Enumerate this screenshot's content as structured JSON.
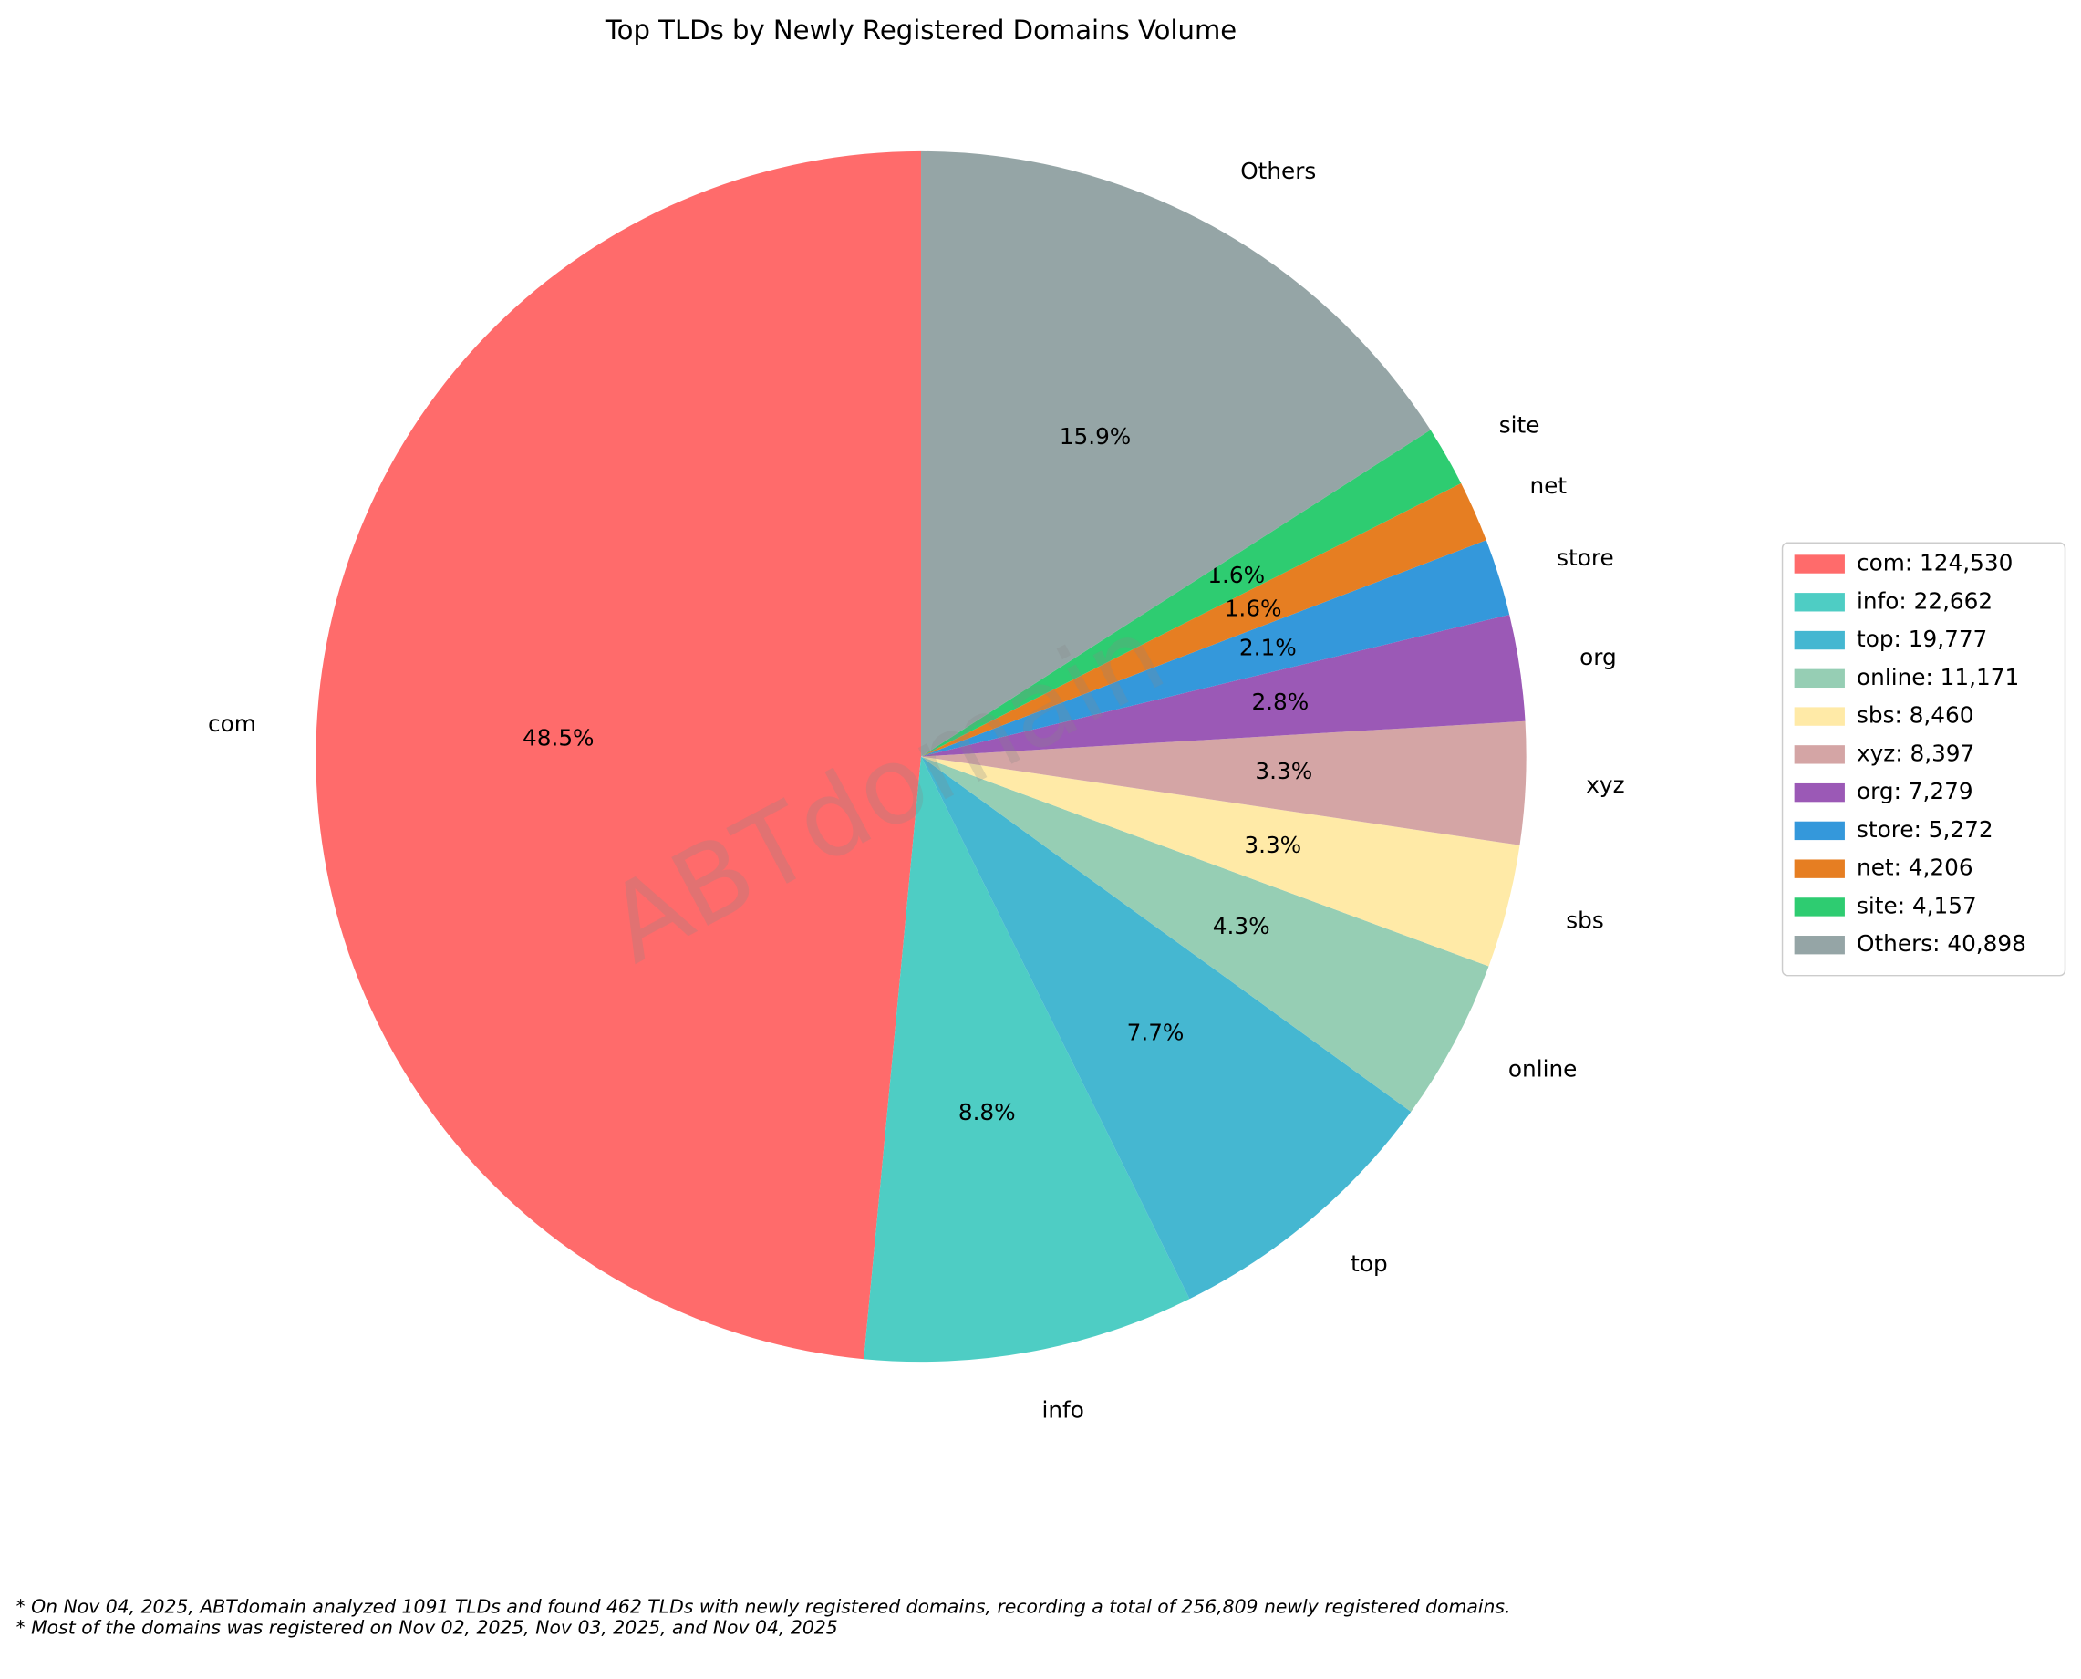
{
  "chart_data": {
    "type": "pie",
    "title": "Top TLDs by Newly Registered Domains Volume",
    "categories": [
      "com",
      "info",
      "top",
      "online",
      "sbs",
      "xyz",
      "org",
      "store",
      "net",
      "site",
      "Others"
    ],
    "values": [
      124530,
      22662,
      19777,
      11171,
      8460,
      8397,
      7279,
      5272,
      4206,
      4157,
      40898
    ],
    "value_labels": [
      "48.5%",
      "8.8%",
      "7.7%",
      "4.3%",
      "3.3%",
      "3.3%",
      "2.8%",
      "2.1%",
      "1.6%",
      "1.6%",
      "15.9%"
    ],
    "colors": [
      "#ff6b6b",
      "#4ecdc4",
      "#45b7d1",
      "#96ceb4",
      "#ffeaa7",
      "#d4a5a5",
      "#9b59b6",
      "#3498db",
      "#e67e22",
      "#2ecc71",
      "#95a5a6"
    ],
    "legend_labels": [
      "com: 124,530",
      "info: 22,662",
      "top: 19,777",
      "online: 11,171",
      "sbs: 8,460",
      "xyz: 8,397",
      "org: 7,279",
      "store: 5,272",
      "net: 4,206",
      "site: 4,157",
      "Others: 40,898"
    ],
    "legend_position": "right",
    "watermark": "ABTdomain",
    "footnotes": [
      "* On Nov 04, 2025, ABTdomain analyzed 1091 TLDs and found 462 TLDs with newly registered domains, recording a total of 256,809 newly registered domains.",
      "* Most of the domains was registered on Nov 02, 2025, Nov 03, 2025, and Nov 04, 2025"
    ]
  }
}
